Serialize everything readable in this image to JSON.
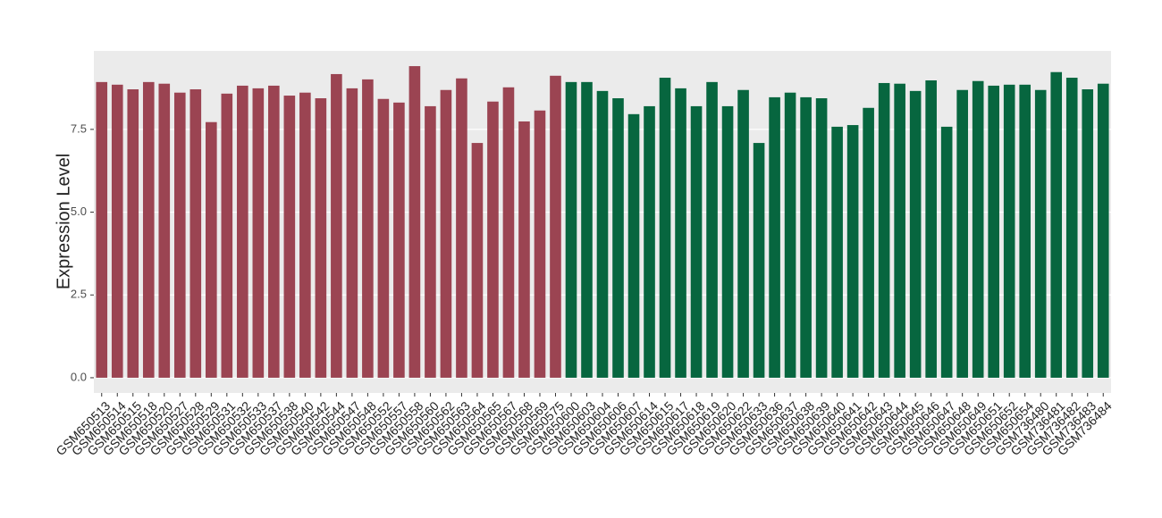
{
  "chart_data": {
    "type": "bar",
    "y_label": "Expression Level",
    "categories": [
      "GSM650513",
      "GSM650514",
      "GSM650515",
      "GSM650518",
      "GSM650520",
      "GSM650527",
      "GSM650528",
      "GSM650529",
      "GSM650531",
      "GSM650532",
      "GSM650533",
      "GSM650537",
      "GSM650538",
      "GSM650540",
      "GSM650542",
      "GSM650544",
      "GSM650547",
      "GSM650548",
      "GSM650552",
      "GSM650557",
      "GSM650558",
      "GSM650560",
      "GSM650562",
      "GSM650563",
      "GSM650564",
      "GSM650565",
      "GSM650567",
      "GSM650568",
      "GSM650569",
      "GSM650575",
      "GSM650600",
      "GSM650603",
      "GSM650604",
      "GSM650606",
      "GSM650607",
      "GSM650614",
      "GSM650615",
      "GSM650617",
      "GSM650618",
      "GSM650619",
      "GSM650620",
      "GSM650622",
      "GSM650633",
      "GSM650636",
      "GSM650637",
      "GSM650638",
      "GSM650639",
      "GSM650640",
      "GSM650641",
      "GSM650642",
      "GSM650643",
      "GSM650644",
      "GSM650645",
      "GSM650646",
      "GSM650647",
      "GSM650648",
      "GSM650649",
      "GSM650651",
      "GSM650652",
      "GSM650654",
      "GSM736480",
      "GSM736481",
      "GSM736482",
      "GSM736483",
      "GSM736484"
    ],
    "values": [
      8.93,
      8.85,
      8.71,
      8.93,
      8.88,
      8.61,
      8.71,
      7.72,
      8.58,
      8.82,
      8.74,
      8.82,
      8.52,
      8.61,
      8.44,
      9.17,
      8.74,
      9.01,
      8.42,
      8.31,
      9.41,
      8.2,
      8.69,
      9.04,
      7.09,
      8.34,
      8.77,
      7.74,
      8.07,
      9.12,
      8.93,
      8.93,
      8.66,
      8.44,
      7.96,
      8.2,
      9.06,
      8.74,
      8.2,
      8.93,
      8.2,
      8.69,
      7.09,
      8.47,
      8.61,
      8.47,
      8.44,
      7.58,
      7.63,
      8.15,
      8.9,
      8.88,
      8.66,
      8.98,
      7.58,
      8.69,
      8.96,
      8.82,
      8.85,
      8.85,
      8.69,
      9.23,
      9.06,
      8.71,
      8.88
    ],
    "colors": [
      "#9b4452",
      "#9b4452",
      "#9b4452",
      "#9b4452",
      "#9b4452",
      "#9b4452",
      "#9b4452",
      "#9b4452",
      "#9b4452",
      "#9b4452",
      "#9b4452",
      "#9b4452",
      "#9b4452",
      "#9b4452",
      "#9b4452",
      "#9b4452",
      "#9b4452",
      "#9b4452",
      "#9b4452",
      "#9b4452",
      "#9b4452",
      "#9b4452",
      "#9b4452",
      "#9b4452",
      "#9b4452",
      "#9b4452",
      "#9b4452",
      "#9b4452",
      "#9b4452",
      "#9b4452",
      "#07663f",
      "#07663f",
      "#07663f",
      "#07663f",
      "#07663f",
      "#07663f",
      "#07663f",
      "#07663f",
      "#07663f",
      "#07663f",
      "#07663f",
      "#07663f",
      "#07663f",
      "#07663f",
      "#07663f",
      "#07663f",
      "#07663f",
      "#07663f",
      "#07663f",
      "#07663f",
      "#07663f",
      "#07663f",
      "#07663f",
      "#07663f",
      "#07663f",
      "#07663f",
      "#07663f",
      "#07663f",
      "#07663f",
      "#07663f",
      "#07663f",
      "#07663f",
      "#07663f",
      "#07663f",
      "#07663f"
    ],
    "ylim": [
      -0.46,
      9.87
    ],
    "yticks": [
      {
        "value": 0,
        "label": "0.0"
      },
      2.5,
      {
        "value": 5,
        "label": "5.0"
      },
      7.5
    ],
    "grid": true
  }
}
